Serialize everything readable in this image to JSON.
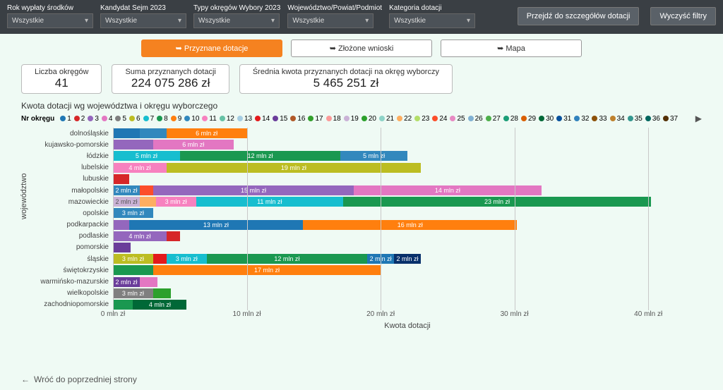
{
  "filters": [
    {
      "label": "Rok wypłaty środków",
      "value": "Wszystkie"
    },
    {
      "label": "Kandydat Sejm 2023",
      "value": "Wszystkie"
    },
    {
      "label": "Typy okręgów Wybory 2023",
      "value": "Wszystkie"
    },
    {
      "label": "Województwo/Powiat/Podmiot",
      "value": "Wszystkie"
    },
    {
      "label": "Kategoria dotacji",
      "value": "Wszystkie"
    }
  ],
  "buttons": {
    "details": "Przejdź do szczegółów dotacji",
    "clear": "Wyczyść filtry"
  },
  "tabs": {
    "a": "➥ Przyznane dotacje",
    "b": "➥ Złożone wnioski",
    "c": "➥ Mapa"
  },
  "kpis": [
    {
      "title": "Liczba okręgów",
      "value": "41"
    },
    {
      "title": "Suma przyznanych dotacji",
      "value": "224 075 286 zł"
    },
    {
      "title": "Średnia kwota przyznanych dotacji na okręg wyborczy",
      "value": "5 465 251 zł"
    }
  ],
  "chart_title": "Kwota dotacji wg województwa i okręgu wyborczego",
  "legend_label": "Nr okręgu",
  "legend_colors": [
    "#1f77b4",
    "#d62728",
    "#9467bd",
    "#e377c2",
    "#7f7f7f",
    "#bcbd22",
    "#17becf",
    "#1a9850",
    "#ff7f0e",
    "#3288bd",
    "#f781bf",
    "#66c2a5",
    "#a6cee3",
    "#e31a1c",
    "#6a3d9a",
    "#b15928",
    "#33a02c",
    "#fb9a99",
    "#cab2d6",
    "#2ca02c",
    "#8dd3c7",
    "#fdae61",
    "#b3de69",
    "#fc4e2a",
    "#e78ac3",
    "#80b1d3",
    "#4daf4a",
    "#1b9e77",
    "#d95f02",
    "#006837",
    "#08519c",
    "#3182bd",
    "#8c510a",
    "#bf812d",
    "#35978f",
    "#01665e",
    "#543005"
  ],
  "y_title": "województwo",
  "x_title": "Kwota dotacji",
  "x_ticks": [
    0,
    10,
    20,
    30,
    40
  ],
  "x_tick_suffix": " mln zł",
  "x_max_mln": 44,
  "rows": [
    {
      "label": "dolnośląskie",
      "segs": [
        {
          "v": 2,
          "c": "#1f77b4",
          "t": ""
        },
        {
          "v": 2,
          "c": "#3288bd",
          "t": ""
        },
        {
          "v": 6,
          "c": "#ff7f0e",
          "t": "6 mln zł"
        }
      ]
    },
    {
      "label": "kujawsko-pomorskie",
      "segs": [
        {
          "v": 3,
          "c": "#9467bd",
          "t": ""
        },
        {
          "v": 6,
          "c": "#e377c2",
          "t": "6 mln zł"
        }
      ]
    },
    {
      "label": "łódzkie",
      "segs": [
        {
          "v": 5,
          "c": "#17becf",
          "t": "5 mln zł",
          "tc": "#fff"
        },
        {
          "v": 12,
          "c": "#1a9850",
          "t": "12 mln zł"
        },
        {
          "v": 5,
          "c": "#3288bd",
          "t": "5 mln zł",
          "tc": "#fff"
        }
      ]
    },
    {
      "label": "lubelskie",
      "segs": [
        {
          "v": 4,
          "c": "#f781bf",
          "t": "4 mln zł",
          "tc": "#fff"
        },
        {
          "v": 19,
          "c": "#bcbd22",
          "t": "19 mln zł"
        }
      ]
    },
    {
      "label": "lubuskie",
      "segs": [
        {
          "v": 1.2,
          "c": "#d62728",
          "t": ""
        }
      ]
    },
    {
      "label": "małopolskie",
      "segs": [
        {
          "v": 2,
          "c": "#3288bd",
          "t": "2 mln zł",
          "tc": "#fff"
        },
        {
          "v": 1,
          "c": "#fc4e2a",
          "t": ""
        },
        {
          "v": 15,
          "c": "#9467bd",
          "t": "15 mln zł"
        },
        {
          "v": 14,
          "c": "#e377c2",
          "t": "14 mln zł"
        }
      ]
    },
    {
      "label": "mazowieckie",
      "segs": [
        {
          "v": 2,
          "c": "#cab2d6",
          "t": "2 mln zł",
          "tc": "#555"
        },
        {
          "v": 1.2,
          "c": "#fdae61",
          "t": ""
        },
        {
          "v": 3,
          "c": "#f781bf",
          "t": "3 mln zł",
          "tc": "#fff"
        },
        {
          "v": 11,
          "c": "#17becf",
          "t": "11 mln zł"
        },
        {
          "v": 23,
          "c": "#1a9850",
          "t": "23 mln zł"
        }
      ]
    },
    {
      "label": "opolskie",
      "segs": [
        {
          "v": 3,
          "c": "#3288bd",
          "t": "3 mln zł",
          "tc": "#fff"
        }
      ]
    },
    {
      "label": "podkarpackie",
      "segs": [
        {
          "v": 1.2,
          "c": "#9467bd",
          "t": ""
        },
        {
          "v": 13,
          "c": "#1f77b4",
          "t": "13 mln zł"
        },
        {
          "v": 16,
          "c": "#ff7f0e",
          "t": "16 mln zł"
        }
      ]
    },
    {
      "label": "podlaskie",
      "segs": [
        {
          "v": 4,
          "c": "#9467bd",
          "t": "4 mln zł",
          "tc": "#fff"
        },
        {
          "v": 1,
          "c": "#d62728",
          "t": ""
        }
      ]
    },
    {
      "label": "pomorskie",
      "segs": [
        {
          "v": 1.3,
          "c": "#6a3d9a",
          "t": ""
        }
      ]
    },
    {
      "label": "śląskie",
      "segs": [
        {
          "v": 3,
          "c": "#bcbd22",
          "t": "3 mln zł",
          "tc": "#fff"
        },
        {
          "v": 1,
          "c": "#e31a1c",
          "t": ""
        },
        {
          "v": 3,
          "c": "#17becf",
          "t": "3 mln zł",
          "tc": "#fff"
        },
        {
          "v": 12,
          "c": "#1a9850",
          "t": "12 mln zł"
        },
        {
          "v": 2,
          "c": "#1f77b4",
          "t": "2 mln zł",
          "tc": "#fff"
        },
        {
          "v": 2,
          "c": "#08306b",
          "t": "2 mln zł",
          "tc": "#fff"
        }
      ]
    },
    {
      "label": "świętokrzyskie",
      "segs": [
        {
          "v": 3,
          "c": "#1a9850",
          "t": ""
        },
        {
          "v": 17,
          "c": "#ff7f0e",
          "t": "17 mln zł"
        }
      ]
    },
    {
      "label": "warmińsko-mazurskie",
      "segs": [
        {
          "v": 2,
          "c": "#6a3d9a",
          "t": "2 mln zł",
          "tc": "#fff"
        },
        {
          "v": 1.3,
          "c": "#e377c2",
          "t": ""
        }
      ]
    },
    {
      "label": "wielkopolskie",
      "segs": [
        {
          "v": 3,
          "c": "#7f7f7f",
          "t": "3 mln zł",
          "tc": "#fff"
        },
        {
          "v": 1.3,
          "c": "#2ca02c",
          "t": ""
        }
      ]
    },
    {
      "label": "zachodniopomorskie",
      "segs": [
        {
          "v": 1.5,
          "c": "#1a9850",
          "t": ""
        },
        {
          "v": 4,
          "c": "#006837",
          "t": "4 mln zł",
          "tc": "#fff"
        }
      ]
    }
  ],
  "back": "Wróć do poprzedniej strony"
}
